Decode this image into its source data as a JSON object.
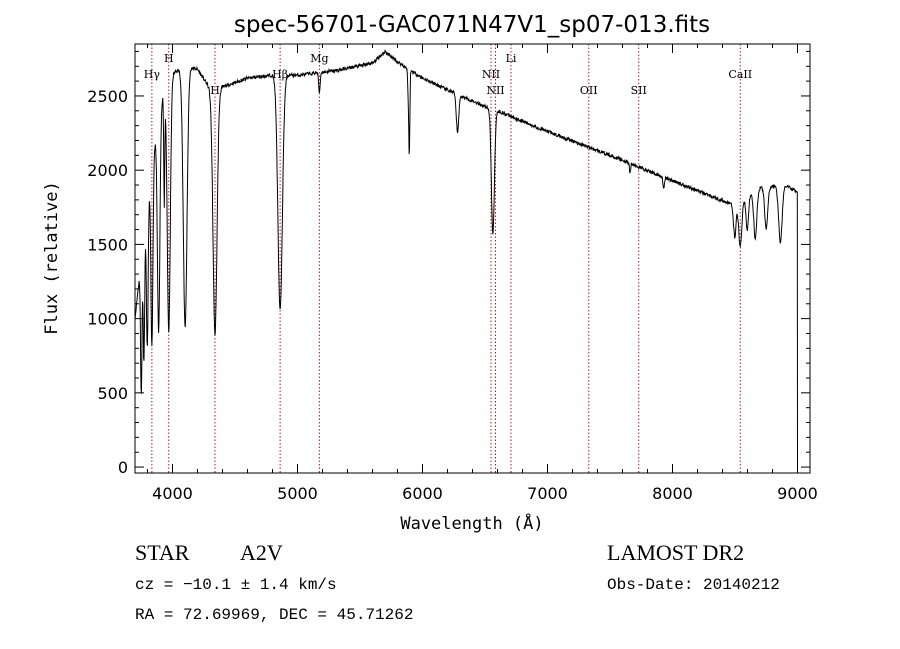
{
  "header": {
    "title": "spec-56701-GAC071N47V1_sp07-013.fits"
  },
  "info": {
    "class": "STAR",
    "subclass": "A2V",
    "survey": "LAMOST DR2",
    "cz": "cz = −10.1 ± 1.4 km/s",
    "obs_date": "Obs-Date: 20140212",
    "radec": "RA =  72.69969, DEC =  45.71262"
  },
  "colors": {
    "spectrum": "#000000",
    "line_markers": "#b22222"
  },
  "chart_data": {
    "type": "line",
    "title": "spec-56701-GAC071N47V1_sp07-013.fits",
    "xlabel": "Wavelength (Å)",
    "ylabel": "Flux (relative)",
    "xlim": [
      3700,
      9100
    ],
    "ylim": [
      -40,
      2850
    ],
    "grid": false,
    "x_ticks": [
      4000,
      5000,
      6000,
      7000,
      8000,
      9000
    ],
    "y_ticks": [
      0,
      500,
      1000,
      1500,
      2000,
      2500
    ],
    "continuum": {
      "x": [
        3700,
        3800,
        3900,
        4000,
        4100,
        4200,
        4300,
        4400,
        4600,
        4800,
        5000,
        5300,
        5600,
        5700,
        5800,
        6000,
        6200,
        6500,
        6600,
        7000,
        7500,
        8000,
        8500,
        8700,
        8900,
        9000
      ],
      "y": [
        1000,
        1800,
        2450,
        2650,
        2700,
        2680,
        2550,
        2560,
        2620,
        2640,
        2640,
        2670,
        2720,
        2800,
        2730,
        2620,
        2540,
        2430,
        2400,
        2260,
        2100,
        1930,
        1760,
        1880,
        1900,
        1850
      ]
    },
    "absorption_lines": [
      {
        "x": 3750,
        "width": 6,
        "depth": 0.65
      },
      {
        "x": 3771,
        "width": 6,
        "depth": 0.55
      },
      {
        "x": 3798,
        "width": 7,
        "depth": 0.55
      },
      {
        "x": 3835,
        "width": 8,
        "depth": 0.6
      },
      {
        "x": 3889,
        "width": 10,
        "depth": 0.62
      },
      {
        "x": 3934,
        "width": 4,
        "depth": 0.3
      },
      {
        "x": 3970,
        "width": 12,
        "depth": 0.65
      },
      {
        "x": 4101,
        "width": 15,
        "depth": 0.65
      },
      {
        "x": 4340,
        "width": 16,
        "depth": 0.65
      },
      {
        "x": 4861,
        "width": 18,
        "depth": 0.6
      },
      {
        "x": 5175,
        "width": 6,
        "depth": 0.05
      },
      {
        "x": 5890,
        "width": 6,
        "depth": 0.1
      },
      {
        "x": 5895,
        "width": 4,
        "depth": 0.15
      },
      {
        "x": 6280,
        "width": 10,
        "depth": 0.1
      },
      {
        "x": 6563,
        "width": 12,
        "depth": 0.35
      },
      {
        "x": 7660,
        "width": 5,
        "depth": 0.03
      },
      {
        "x": 7930,
        "width": 6,
        "depth": 0.04
      },
      {
        "x": 8498,
        "width": 10,
        "depth": 0.12
      },
      {
        "x": 8542,
        "width": 12,
        "depth": 0.17
      },
      {
        "x": 8598,
        "width": 10,
        "depth": 0.12
      },
      {
        "x": 8662,
        "width": 12,
        "depth": 0.17
      },
      {
        "x": 8750,
        "width": 12,
        "depth": 0.15
      },
      {
        "x": 8863,
        "width": 14,
        "depth": 0.2
      }
    ],
    "annotations": [
      {
        "label": "Hγ",
        "x": 3835
      },
      {
        "label": "H",
        "x": 3970
      },
      {
        "label": "H",
        "x": 4340
      },
      {
        "label": "Hβ",
        "x": 4861
      },
      {
        "label": "Mg",
        "x": 5175
      },
      {
        "label": "NII",
        "x": 6548
      },
      {
        "label": "NII",
        "x": 6584
      },
      {
        "label": "Li",
        "x": 6708
      },
      {
        "label": "OII",
        "x": 7330
      },
      {
        "label": "SII",
        "x": 7730
      },
      {
        "label": "CaII",
        "x": 8542
      }
    ]
  }
}
